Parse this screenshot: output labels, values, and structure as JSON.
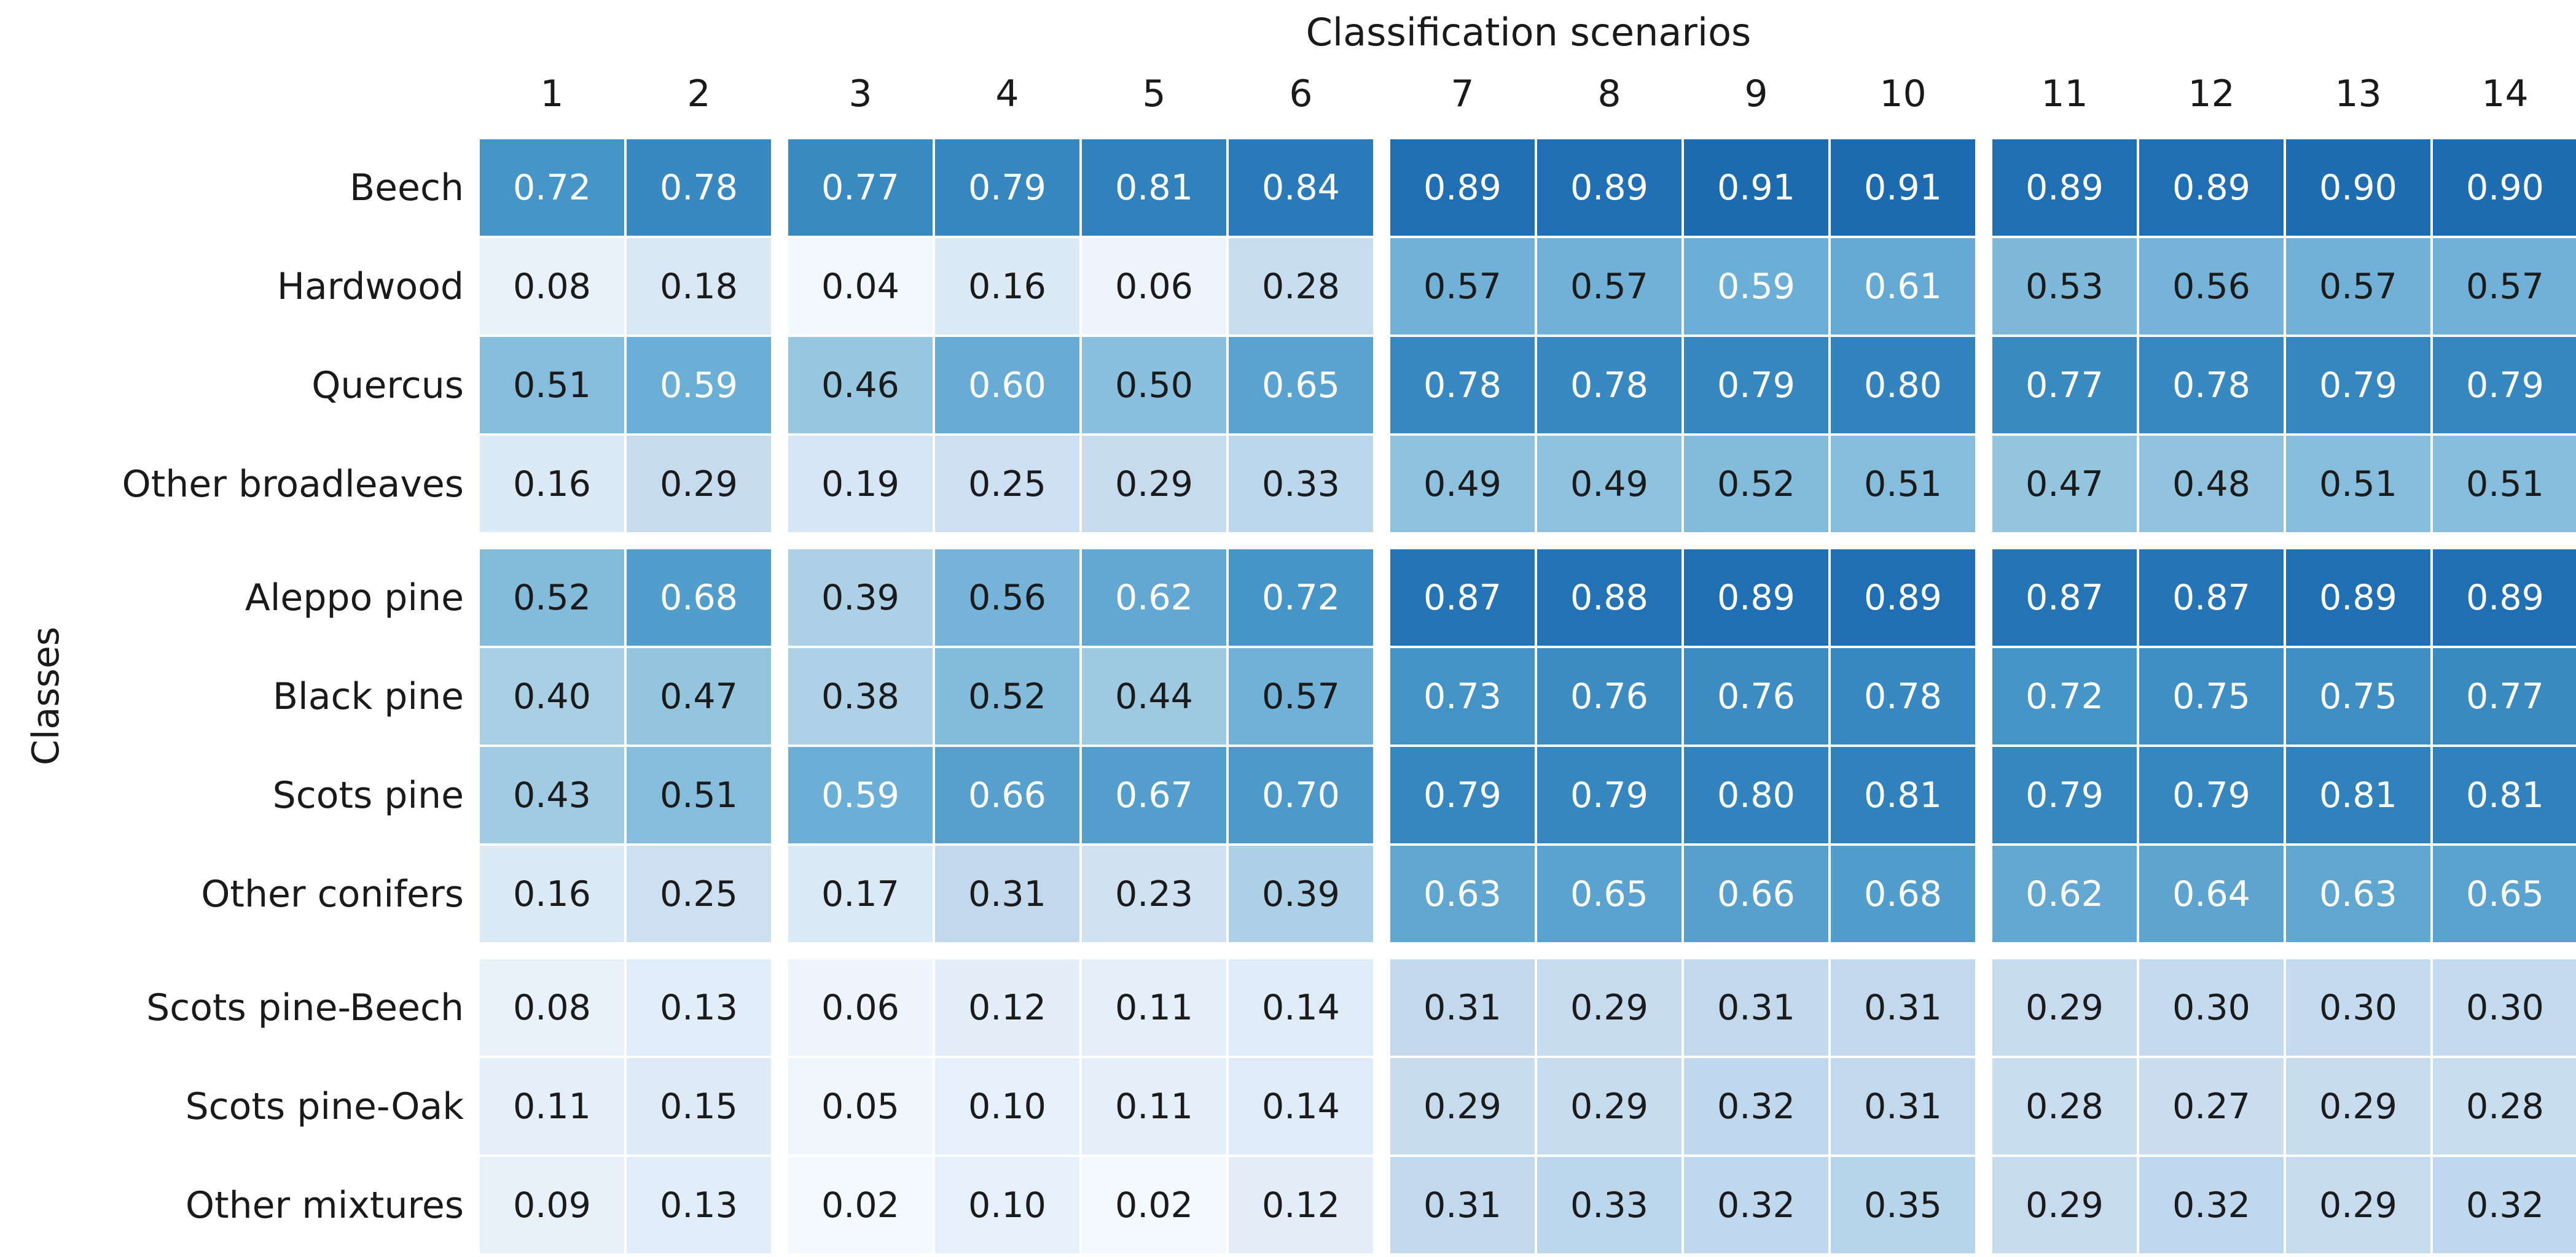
{
  "figure": {
    "title": "Classification scenarios",
    "ylabel": "Classes"
  },
  "chart_data": {
    "type": "heatmap",
    "title": "Classification scenarios",
    "xlabel": "Classification scenarios",
    "ylabel": "Classes",
    "columns": [
      "1",
      "2",
      "3",
      "4",
      "5",
      "6",
      "7",
      "8",
      "9",
      "10",
      "11",
      "12",
      "13",
      "14"
    ],
    "rows": [
      "Beech",
      "Hardwood",
      "Quercus",
      "Other broadleaves",
      "Aleppo pine",
      "Black pine",
      "Scots pine",
      "Other conifers",
      "Scots pine-Beech",
      "Scots pine-Oak",
      "Other mixtures"
    ],
    "values": [
      [
        0.72,
        0.78,
        0.77,
        0.79,
        0.81,
        0.84,
        0.89,
        0.89,
        0.91,
        0.91,
        0.89,
        0.89,
        0.9,
        0.9
      ],
      [
        0.08,
        0.18,
        0.04,
        0.16,
        0.06,
        0.28,
        0.57,
        0.57,
        0.59,
        0.61,
        0.53,
        0.56,
        0.57,
        0.57
      ],
      [
        0.51,
        0.59,
        0.46,
        0.6,
        0.5,
        0.65,
        0.78,
        0.78,
        0.79,
        0.8,
        0.77,
        0.78,
        0.79,
        0.79
      ],
      [
        0.16,
        0.29,
        0.19,
        0.25,
        0.29,
        0.33,
        0.49,
        0.49,
        0.52,
        0.51,
        0.47,
        0.48,
        0.51,
        0.51
      ],
      [
        0.52,
        0.68,
        0.39,
        0.56,
        0.62,
        0.72,
        0.87,
        0.88,
        0.89,
        0.89,
        0.87,
        0.87,
        0.89,
        0.89
      ],
      [
        0.4,
        0.47,
        0.38,
        0.52,
        0.44,
        0.57,
        0.73,
        0.76,
        0.76,
        0.78,
        0.72,
        0.75,
        0.75,
        0.77
      ],
      [
        0.43,
        0.51,
        0.59,
        0.66,
        0.67,
        0.7,
        0.79,
        0.79,
        0.8,
        0.81,
        0.79,
        0.79,
        0.81,
        0.81
      ],
      [
        0.16,
        0.25,
        0.17,
        0.31,
        0.23,
        0.39,
        0.63,
        0.65,
        0.66,
        0.68,
        0.62,
        0.64,
        0.63,
        0.65
      ],
      [
        0.08,
        0.13,
        0.06,
        0.12,
        0.11,
        0.14,
        0.31,
        0.29,
        0.31,
        0.31,
        0.29,
        0.3,
        0.3,
        0.3
      ],
      [
        0.11,
        0.15,
        0.05,
        0.1,
        0.11,
        0.14,
        0.29,
        0.29,
        0.32,
        0.31,
        0.28,
        0.27,
        0.29,
        0.28
      ],
      [
        0.09,
        0.13,
        0.02,
        0.1,
        0.02,
        0.12,
        0.31,
        0.33,
        0.32,
        0.35,
        0.29,
        0.32,
        0.29,
        0.32
      ]
    ],
    "column_groups": [
      [
        "1",
        "2"
      ],
      [
        "3",
        "4",
        "5",
        "6"
      ],
      [
        "7",
        "8",
        "9",
        "10"
      ],
      [
        "11",
        "12",
        "13",
        "14"
      ]
    ],
    "row_groups": [
      [
        "Beech",
        "Hardwood",
        "Quercus",
        "Other broadleaves"
      ],
      [
        "Aleppo pine",
        "Black pine",
        "Scots pine",
        "Other conifers"
      ],
      [
        "Scots pine-Beech",
        "Scots pine-Oak",
        "Other mixtures"
      ]
    ],
    "value_format_decimals": 2,
    "grid_on": false,
    "legend": "none",
    "colormap": "Blues",
    "colormap_anchors": [
      [
        0.0,
        "#f7fbff"
      ],
      [
        0.125,
        "#deebf7"
      ],
      [
        0.25,
        "#c6dbef"
      ],
      [
        0.375,
        "#9ecae1"
      ],
      [
        0.5,
        "#6baed6"
      ],
      [
        0.625,
        "#4292c6"
      ],
      [
        0.75,
        "#2171b5"
      ],
      [
        0.875,
        "#08519c"
      ],
      [
        1.0,
        "#08306b"
      ]
    ],
    "color_scale_factor": 0.85,
    "white_text_threshold": 0.58,
    "annotation_colors": {
      "dark": "#1b1b1b",
      "light": "#ffffff"
    },
    "cell_border_color": "#ffffff"
  }
}
